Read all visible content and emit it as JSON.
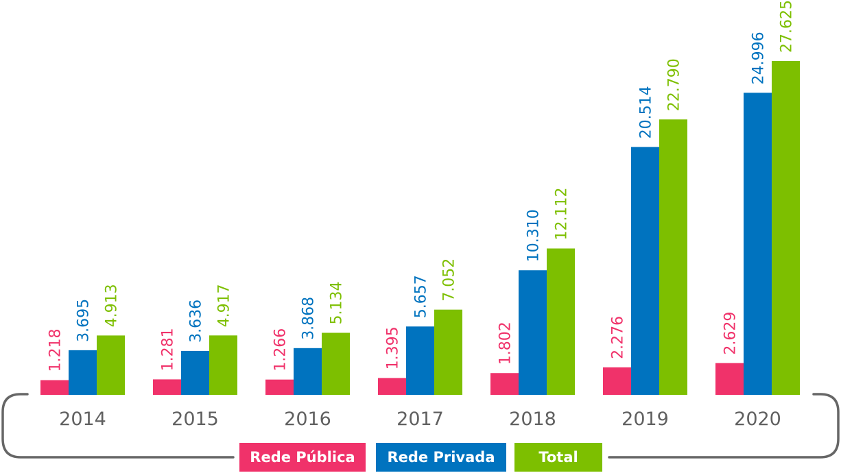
{
  "chart_data": {
    "type": "bar",
    "categories": [
      "2014",
      "2015",
      "2016",
      "2017",
      "2018",
      "2019",
      "2020"
    ],
    "series": [
      {
        "name": "Rede Pública",
        "color": "#f0326a",
        "values": [
          1218,
          1281,
          1266,
          1395,
          1802,
          2276,
          2629
        ],
        "labels": [
          "1.218",
          "1.281",
          "1.266",
          "1.395",
          "1.802",
          "2.276",
          "2.629"
        ]
      },
      {
        "name": "Rede Privada",
        "color": "#0073bf",
        "values": [
          3695,
          3636,
          3868,
          5657,
          10310,
          20514,
          24996
        ],
        "labels": [
          "3.695",
          "3.636",
          "3.868",
          "5.657",
          "10.310",
          "20.514",
          "24.996"
        ]
      },
      {
        "name": "Total",
        "color": "#7dbf00",
        "values": [
          4913,
          4917,
          5134,
          7052,
          12112,
          22790,
          27625
        ],
        "labels": [
          "4.913",
          "4.917",
          "5.134",
          "7.052",
          "12.112",
          "22.790",
          "27.625"
        ]
      }
    ],
    "ylim": [
      0,
      27625
    ],
    "grid": false,
    "legend_position": "bottom",
    "title": "",
    "xlabel": "",
    "ylabel": ""
  },
  "legend": {
    "rede_publica": "Rede Pública",
    "rede_privada": "Rede Privada",
    "total": "Total"
  },
  "colors": {
    "bracket": "#666666",
    "tick_text": "#606060"
  }
}
